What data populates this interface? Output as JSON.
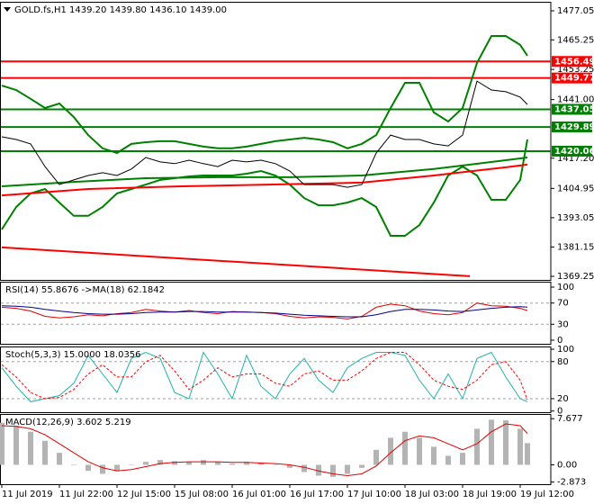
{
  "chart_data": [
    {
      "type": "line",
      "title": "GOLD.fs,H1 1439.20 1439.80 1436.10 1439.00",
      "xlim": [
        0,
        76
      ],
      "ylim": [
        1367.8,
        1480.7
      ],
      "yticks": [
        1477.05,
        1465.25,
        1453.25,
        {
          "value": 1441,
          "label": "1441.00"
        },
        {
          "value": 1417.2,
          "label": "1417.20"
        },
        1404.95,
        1393.05,
        1381.15,
        1369.25
      ],
      "x": [
        0,
        2,
        4,
        6,
        8,
        10,
        12,
        14,
        16,
        18,
        20,
        22,
        24,
        26,
        28,
        30,
        32,
        34,
        36,
        38,
        40,
        42,
        44,
        46,
        48,
        50,
        52,
        54,
        56,
        58,
        60,
        62,
        64,
        66,
        68,
        70,
        72,
        73
      ],
      "levels": [
        {
          "value": 1456.49,
          "color": "#ff0000"
        },
        {
          "value": 1449.77,
          "color": "#ff0000"
        },
        {
          "value": 1437.05,
          "color": "#008000"
        },
        {
          "value": 1429.89,
          "color": "#008000"
        },
        {
          "value": 1420.06,
          "color": "#008000"
        }
      ],
      "series": [
        {
          "color": "#008000",
          "values": [
            1446.7,
            1444.9,
            1441.3,
            1437.6,
            1439.4,
            1433.9,
            1426.6,
            1421.2,
            1419.3,
            1423.0,
            1423.7,
            1424.1,
            1424.1,
            1423.0,
            1421.9,
            1421.2,
            1421.2,
            1421.9,
            1423.0,
            1424.1,
            1424.8,
            1425.5,
            1424.8,
            1423.7,
            1421.2,
            1423.0,
            1426.6,
            1437.6,
            1447.8,
            1447.8,
            1435.8,
            1432.1,
            1437.6,
            1455.9,
            1466.8,
            1466.8,
            1463.2,
            1458.8
          ]
        },
        {
          "color": "#008000",
          "values": [
            1388.3,
            1397.4,
            1402.9,
            1404.7,
            1399.2,
            1393.8,
            1393.8,
            1397.4,
            1402.9,
            1404.7,
            1406.5,
            1408.4,
            1409.1,
            1409.8,
            1410.2,
            1410.2,
            1410.2,
            1410.9,
            1412.0,
            1410.2,
            1406.5,
            1401.0,
            1398.1,
            1398.1,
            1399.2,
            1401.0,
            1397.4,
            1385.7,
            1385.7,
            1390.1,
            1399.2,
            1410.2,
            1413.8,
            1410.2,
            1400.3,
            1400.3,
            1408.4,
            1424.8
          ]
        },
        {
          "color": "#008000",
          "x": [
            0,
            10,
            20,
            30,
            40,
            50,
            60,
            70,
            73
          ],
          "values": [
            1405.8,
            1407.6,
            1409.1,
            1409.5,
            1409.5,
            1410.2,
            1412.8,
            1416.4,
            1417.5
          ]
        },
        {
          "color": "#ff0000",
          "x": [
            0,
            12,
            25,
            37,
            50,
            60,
            70,
            73
          ],
          "values": [
            1402.1,
            1404.7,
            1405.8,
            1406.5,
            1407.3,
            1410.2,
            1413.5,
            1414.6
          ]
        },
        {
          "color": "#ff0000",
          "x": [
            0,
            65
          ],
          "values": [
            1381.0,
            1369.3
          ]
        },
        {
          "color": "#000000",
          "values": [
            1425.9,
            1424.8,
            1423.0,
            1413.8,
            1406.5,
            1408.4,
            1410.2,
            1411.3,
            1410.2,
            1412.8,
            1417.5,
            1415.7,
            1415.0,
            1416.4,
            1415.0,
            1413.8,
            1416.4,
            1415.7,
            1416.4,
            1415.0,
            1412.0,
            1406.5,
            1406.5,
            1406.5,
            1405.4,
            1406.5,
            1419.3,
            1426.6,
            1424.8,
            1424.8,
            1423.0,
            1422.2,
            1426.6,
            1448.5,
            1444.9,
            1444.2,
            1442.0,
            1439.0
          ]
        }
      ]
    },
    {
      "type": "line",
      "title": "RSI(14) 55.8676 ->MA(18) 62.1842",
      "xlim": [
        0,
        76
      ],
      "ylim": [
        -6.8,
        110.2
      ],
      "yticks": [
        100,
        70,
        30,
        0
      ],
      "grid": true,
      "x": [
        0,
        2,
        4,
        6,
        8,
        10,
        12,
        14,
        16,
        18,
        20,
        22,
        24,
        26,
        28,
        30,
        32,
        34,
        36,
        38,
        40,
        42,
        44,
        46,
        48,
        50,
        52,
        54,
        56,
        58,
        60,
        62,
        64,
        66,
        68,
        70,
        72,
        73
      ],
      "series": [
        {
          "color": "#e00000",
          "values": [
            62,
            60,
            55,
            45,
            42,
            44,
            48,
            46,
            50,
            52,
            58,
            55,
            53,
            56,
            52,
            50,
            54,
            53,
            52,
            50,
            45,
            42,
            44,
            43,
            40,
            45,
            62,
            68,
            65,
            55,
            50,
            48,
            52,
            70,
            65,
            64,
            60,
            55.8676
          ]
        },
        {
          "color": "#00008b",
          "values": [
            65,
            64,
            62,
            58,
            55,
            52,
            50,
            49,
            49,
            50,
            52,
            53,
            53,
            54,
            54,
            53,
            53,
            53,
            52,
            51,
            49,
            47,
            46,
            45,
            44,
            44,
            48,
            54,
            58,
            58,
            57,
            55,
            54,
            57,
            60,
            62,
            63,
            62.1842
          ]
        }
      ]
    },
    {
      "type": "line",
      "title": "Stoch(5,3,3) 15.0000 18.0356",
      "xlim": [
        0,
        76
      ],
      "ylim": [
        -1.9,
        104.4
      ],
      "yticks": [
        100,
        80,
        20,
        0
      ],
      "grid": true,
      "x": [
        0,
        2,
        4,
        6,
        8,
        10,
        12,
        14,
        16,
        18,
        20,
        22,
        24,
        26,
        28,
        30,
        32,
        34,
        36,
        38,
        40,
        42,
        44,
        46,
        48,
        50,
        52,
        54,
        56,
        58,
        60,
        62,
        64,
        66,
        68,
        70,
        72,
        73
      ],
      "series": [
        {
          "color": "#20b2aa",
          "values": [
            70,
            40,
            15,
            20,
            25,
            45,
            90,
            60,
            30,
            85,
            95,
            85,
            30,
            20,
            95,
            60,
            20,
            90,
            40,
            20,
            60,
            85,
            50,
            30,
            70,
            85,
            95,
            95,
            90,
            50,
            20,
            60,
            20,
            85,
            95,
            55,
            20,
            15
          ]
        },
        {
          "color": "#ff0000",
          "dash": true,
          "values": [
            75,
            55,
            30,
            20,
            22,
            35,
            60,
            75,
            55,
            55,
            80,
            90,
            65,
            35,
            50,
            70,
            55,
            60,
            60,
            45,
            40,
            60,
            65,
            50,
            50,
            65,
            85,
            95,
            95,
            75,
            50,
            40,
            35,
            50,
            75,
            80,
            50,
            18.0356
          ]
        }
      ]
    },
    {
      "type": "bar",
      "title": "MACD(12,26,9) 3.602 5.219",
      "xlim": [
        0,
        76
      ],
      "ylim": [
        -3.22,
        8.45
      ],
      "yticks": [
        7.677,
        {
          "value": 0,
          "label": "0.00"
        },
        -2.873
      ],
      "x": [
        0,
        2,
        4,
        6,
        8,
        10,
        12,
        14,
        16,
        18,
        20,
        22,
        24,
        26,
        28,
        30,
        32,
        34,
        36,
        38,
        40,
        42,
        44,
        46,
        48,
        50,
        52,
        54,
        56,
        58,
        60,
        62,
        64,
        66,
        68,
        70,
        72,
        73
      ],
      "xticks": [
        {
          "value": 0,
          "label": "11 Jul 2019"
        },
        {
          "value": 8,
          "label": "11 Jul 22:00"
        },
        {
          "value": 16,
          "label": "12 Jul 15:00"
        },
        {
          "value": 24,
          "label": "15 Jul 08:00"
        },
        {
          "value": 32,
          "label": "16 Jul 01:00"
        },
        {
          "value": 40,
          "label": "16 Jul 17:00"
        },
        {
          "value": 48,
          "label": "17 Jul 10:00"
        },
        {
          "value": 56,
          "label": "18 Jul 03:00"
        },
        {
          "value": 64,
          "label": "18 Jul 19:00"
        },
        {
          "value": 72,
          "label": "19 Jul 12:00"
        }
      ],
      "series": [
        {
          "color": "#b4b4b4",
          "values": [
            7.0,
            6.5,
            5.5,
            4.0,
            2.0,
            0.0,
            -1.0,
            -1.5,
            -1.0,
            0.0,
            0.5,
            0.8,
            0.6,
            0.5,
            0.8,
            0.5,
            0.2,
            0.5,
            0.3,
            0.0,
            -0.5,
            -1.2,
            -1.8,
            -2.0,
            -1.5,
            -0.5,
            2.5,
            4.5,
            5.5,
            4.5,
            3.0,
            1.5,
            2.0,
            6.0,
            7.5,
            7.4,
            6.0,
            3.602
          ]
        },
        {
          "color": "#e00000",
          "type": "line",
          "values": [
            6.5,
            6.4,
            6.0,
            5.0,
            3.5,
            2.0,
            0.5,
            -0.5,
            -1.0,
            -0.8,
            -0.3,
            0.2,
            0.4,
            0.5,
            0.5,
            0.5,
            0.4,
            0.4,
            0.3,
            0.2,
            0.0,
            -0.4,
            -1.0,
            -1.5,
            -1.8,
            -1.5,
            -0.2,
            2.0,
            4.0,
            4.8,
            4.5,
            3.5,
            2.5,
            3.5,
            5.5,
            6.8,
            6.5,
            5.219
          ]
        }
      ]
    }
  ]
}
